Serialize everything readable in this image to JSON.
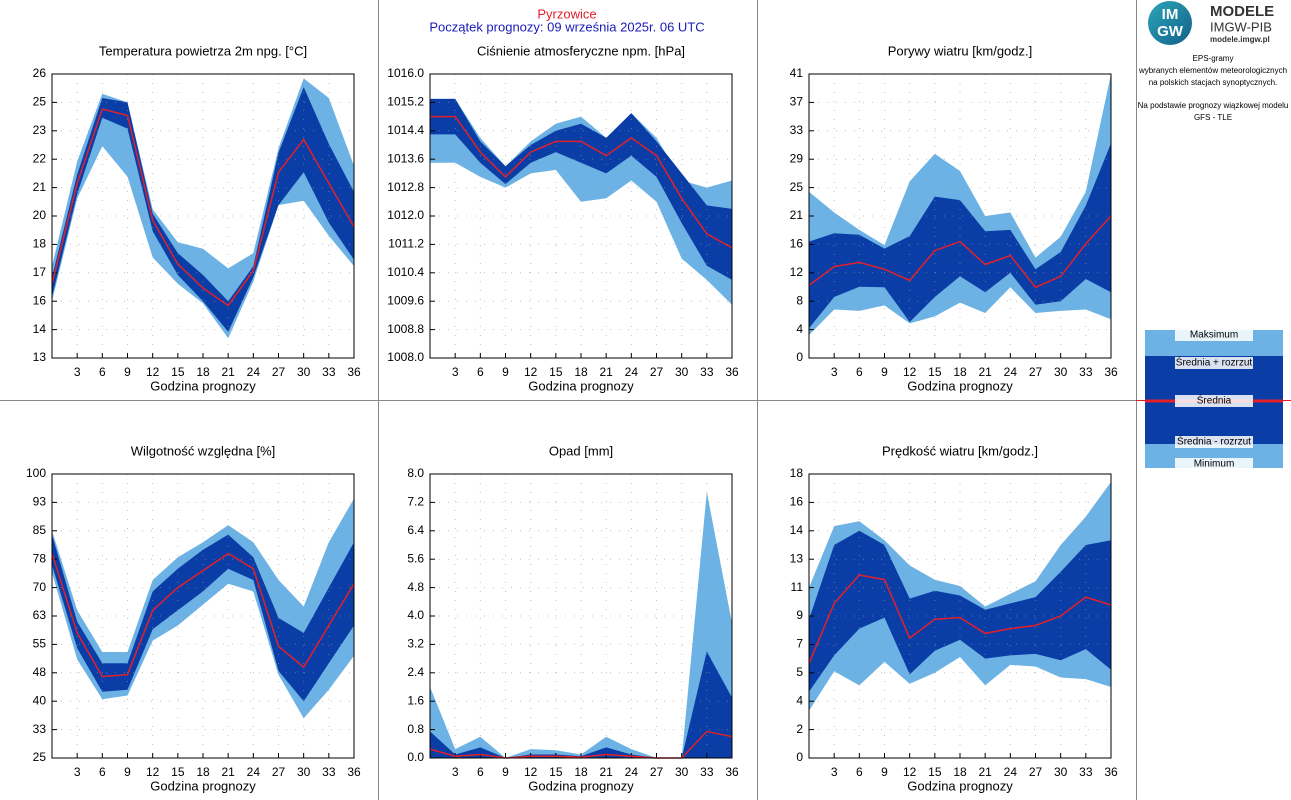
{
  "header": {
    "station": "Pyrzowice",
    "start": "Początek prognozy: 09 września 2025r. 06 UTC"
  },
  "logo": {
    "mark_top": "IM",
    "mark_bottom": "GW",
    "name": "MODELE",
    "org": "IMGW-PIB",
    "url": "modele.imgw.pl"
  },
  "description": [
    "EPS-gramy",
    "wybranych elementów meteorologicznych",
    "na polskich stacjach  synoptycznych.",
    "Na podstawie prognozy wiązkowej modelu",
    "GFS - TLE"
  ],
  "legend": [
    {
      "name": "Maksimum",
      "color": "#6cb2e4"
    },
    {
      "name": "Średnia + rozrzut",
      "color": "#0a3ea6"
    },
    {
      "name": "Średnia",
      "color": "#e3202a"
    },
    {
      "name": "Średnia - rozrzut",
      "color": "#0a3ea6"
    },
    {
      "name": "Minimum",
      "color": "#6cb2e4"
    }
  ],
  "chart_data": [
    {
      "type": "band",
      "title": "Temperatura powietrza 2m npg. [°C]",
      "xlabel": "Godzina prognozy",
      "x": [
        0,
        3,
        6,
        9,
        12,
        15,
        18,
        21,
        24,
        27,
        30,
        33,
        36
      ],
      "xlim": [
        0,
        36
      ],
      "xticks": [
        3,
        6,
        9,
        12,
        15,
        18,
        21,
        24,
        27,
        30,
        33,
        36
      ],
      "ylim": [
        13,
        26
      ],
      "yticks": [
        13,
        {
          "value": 14.3,
          "label": "14"
        },
        {
          "value": 15.6,
          "label": "16"
        },
        {
          "value": 16.9,
          "label": "17"
        },
        {
          "value": 18.2,
          "label": "18"
        },
        {
          "value": 19.5,
          "label": "20"
        },
        {
          "value": 20.8,
          "label": "21"
        },
        {
          "value": 22.1,
          "label": "22"
        },
        {
          "value": 23.4,
          "label": "23"
        },
        {
          "value": 24.7,
          "label": "25"
        },
        26
      ],
      "series": [
        {
          "values": [
            17.2,
            22,
            25.1,
            24.7,
            19.8,
            18.3,
            18,
            17.1,
            17.8,
            22.6,
            25.8,
            24.9,
            21.8
          ]
        },
        {
          "values": [
            16.7,
            21.4,
            24.9,
            24.7,
            19.6,
            17.8,
            16.8,
            15.6,
            17.2,
            22.4,
            25.4,
            22.8,
            20.6
          ]
        },
        {
          "values": [
            16.4,
            21,
            24.4,
            24.1,
            19.3,
            17.3,
            16.2,
            15.4,
            17,
            21.5,
            23,
            21,
            19
          ]
        },
        {
          "values": [
            15.8,
            20.5,
            24,
            23.5,
            18.8,
            16.8,
            15.6,
            14.2,
            16.7,
            20,
            21.5,
            19.2,
            17.5
          ]
        },
        {
          "values": [
            15.6,
            20.3,
            22.7,
            21.3,
            17.6,
            16.4,
            15.5,
            13.9,
            16.5,
            20,
            20.2,
            18.6,
            17.2
          ]
        }
      ]
    },
    {
      "type": "band",
      "title": "Ciśnienie atmosferyczne npm. [hPa]",
      "xlabel": "Godzina prognozy",
      "x": [
        0,
        3,
        6,
        9,
        12,
        15,
        18,
        21,
        24,
        27,
        30,
        33,
        36
      ],
      "xlim": [
        0,
        36
      ],
      "xticks": [
        3,
        6,
        9,
        12,
        15,
        18,
        21,
        24,
        27,
        30,
        33,
        36
      ],
      "ylim": [
        1008,
        1016
      ],
      "yticks": [
        {
          "value": 1008,
          "label": "1008.0"
        },
        1008.8,
        1009.6,
        1010.4,
        1011.2,
        {
          "value": 1012,
          "label": "1012.0"
        },
        1012.8,
        1013.6,
        1014.4,
        1015.2,
        {
          "value": 1016,
          "label": "1016.0"
        }
      ],
      "series": [
        {
          "values": [
            1015.3,
            1015.3,
            1014.2,
            1013.4,
            1014.1,
            1014.6,
            1014.8,
            1014.2,
            1014.9,
            1014.2,
            1013,
            1012.8,
            1013
          ]
        },
        {
          "values": [
            1015.3,
            1015.3,
            1014.1,
            1013.4,
            1014,
            1014.4,
            1014.6,
            1014.2,
            1014.9,
            1014.1,
            1013.2,
            1012.3,
            1012.2
          ]
        },
        {
          "values": [
            1014.8,
            1014.8,
            1013.8,
            1013.1,
            1013.8,
            1014.1,
            1014.1,
            1013.7,
            1014.2,
            1013.7,
            1012.5,
            1011.5,
            1011.1
          ]
        },
        {
          "values": [
            1014.3,
            1014.3,
            1013.5,
            1012.9,
            1013.5,
            1013.8,
            1013.5,
            1013.2,
            1013.7,
            1013.1,
            1011.8,
            1010.6,
            1010.2
          ]
        },
        {
          "values": [
            1013.5,
            1013.5,
            1013.1,
            1012.8,
            1013.2,
            1013.3,
            1012.4,
            1012.5,
            1013,
            1012.4,
            1010.8,
            1010.2,
            1009.5
          ]
        }
      ]
    },
    {
      "type": "band",
      "title": "Porywy wiatru [km/godz.]",
      "xlabel": "Godzina prognozy",
      "x": [
        0,
        3,
        6,
        9,
        12,
        15,
        18,
        21,
        24,
        27,
        30,
        33,
        36
      ],
      "xlim": [
        0,
        36
      ],
      "xticks": [
        3,
        6,
        9,
        12,
        15,
        18,
        21,
        24,
        27,
        30,
        33,
        36
      ],
      "ylim": [
        0,
        41
      ],
      "yticks": [
        0,
        {
          "value": 4.1,
          "label": "4"
        },
        {
          "value": 8.2,
          "label": "8"
        },
        {
          "value": 12.3,
          "label": "12"
        },
        {
          "value": 16.4,
          "label": "16"
        },
        {
          "value": 20.5,
          "label": "21"
        },
        {
          "value": 24.6,
          "label": "25"
        },
        {
          "value": 28.7,
          "label": "29"
        },
        {
          "value": 32.8,
          "label": "33"
        },
        {
          "value": 36.9,
          "label": "37"
        },
        41
      ],
      "series": [
        {
          "values": [
            24,
            21,
            18.5,
            16.3,
            25.5,
            29.5,
            27,
            20.5,
            21,
            14.5,
            17.5,
            24,
            41
          ]
        },
        {
          "values": [
            16.8,
            18,
            17.8,
            15.8,
            17.6,
            23.3,
            22.8,
            18.3,
            18.5,
            12.8,
            15.3,
            22,
            31
          ]
        },
        {
          "values": [
            10.5,
            13.2,
            13.8,
            12.8,
            11.2,
            15.5,
            16.8,
            13.5,
            14.8,
            10.2,
            11.8,
            16.5,
            20.5
          ]
        },
        {
          "values": [
            4.3,
            8.8,
            10.3,
            10.2,
            5.2,
            8.8,
            11.8,
            9.5,
            12.3,
            7.7,
            8.2,
            11.4,
            9.5
          ]
        },
        {
          "values": [
            3.3,
            7,
            6.8,
            7.6,
            5,
            6,
            8,
            6.5,
            10.2,
            6.5,
            6.8,
            7,
            5.6
          ]
        }
      ]
    },
    {
      "type": "band",
      "title": "Wilgotność względna [%]",
      "xlabel": "Godzina prognozy",
      "x": [
        0,
        3,
        6,
        9,
        12,
        15,
        18,
        21,
        24,
        27,
        30,
        33,
        36
      ],
      "xlim": [
        0,
        36
      ],
      "xticks": [
        3,
        6,
        9,
        12,
        15,
        18,
        21,
        24,
        27,
        30,
        33,
        36
      ],
      "ylim": [
        25,
        100
      ],
      "yticks": [
        25,
        {
          "value": 32.5,
          "label": "33"
        },
        40,
        {
          "value": 47.5,
          "label": "48"
        },
        55,
        {
          "value": 62.5,
          "label": "63"
        },
        70,
        {
          "value": 77.5,
          "label": "78"
        },
        85,
        {
          "value": 92.5,
          "label": "93"
        },
        100
      ],
      "series": [
        {
          "values": [
            85,
            64,
            53,
            53,
            72,
            78,
            82,
            86.5,
            82,
            72,
            65,
            82,
            93.5
          ]
        },
        {
          "values": [
            84,
            61,
            50,
            50,
            69,
            75,
            80,
            84,
            78,
            62,
            58,
            70,
            82
          ]
        },
        {
          "values": [
            79,
            58,
            46.5,
            47,
            64,
            70,
            74.5,
            79,
            75,
            54.5,
            49,
            60,
            71
          ]
        },
        {
          "values": [
            76,
            54,
            42.5,
            43,
            59,
            64,
            69,
            75,
            72,
            48,
            40,
            50,
            60
          ]
        },
        {
          "values": [
            74,
            51,
            40.5,
            41.5,
            56,
            60,
            65.5,
            71,
            69,
            47,
            35.5,
            43,
            52
          ]
        }
      ]
    },
    {
      "type": "band",
      "title": "Opad [mm]",
      "xlabel": "Godzina prognozy",
      "x": [
        0,
        3,
        6,
        9,
        12,
        15,
        18,
        21,
        24,
        27,
        30,
        33,
        36
      ],
      "xlim": [
        0,
        36
      ],
      "xticks": [
        3,
        6,
        9,
        12,
        15,
        18,
        21,
        24,
        27,
        30,
        33,
        36
      ],
      "ylim": [
        0,
        8
      ],
      "yticks": [
        {
          "value": 0,
          "label": "0.0"
        },
        0.8,
        1.6,
        2.4,
        3.2,
        {
          "value": 4,
          "label": "4.0"
        },
        4.8,
        5.6,
        6.4,
        7.2,
        {
          "value": 8,
          "label": "8.0"
        }
      ],
      "series": [
        {
          "values": [
            2,
            0.25,
            0.6,
            0,
            0.25,
            0.22,
            0.1,
            0.6,
            0.25,
            0,
            0,
            7.5,
            3.8
          ]
        },
        {
          "values": [
            0.75,
            0.1,
            0.3,
            0,
            0.1,
            0.1,
            0.05,
            0.3,
            0.1,
            0,
            0,
            3,
            1.7
          ]
        },
        {
          "values": [
            0.25,
            0.05,
            0.1,
            0,
            0.05,
            0.05,
            0.02,
            0.1,
            0.05,
            0,
            0,
            0.75,
            0.6
          ]
        },
        {
          "values": [
            0,
            0,
            0,
            0,
            0,
            0,
            0,
            0,
            0,
            0,
            0,
            0,
            0
          ]
        },
        {
          "values": [
            0,
            0,
            0,
            0,
            0,
            0,
            0,
            0,
            0,
            0,
            0,
            0,
            0
          ]
        }
      ]
    },
    {
      "type": "band",
      "title": "Prędkość wiatru [km/godz.]",
      "xlabel": "Godzina prognozy",
      "x": [
        0,
        3,
        6,
        9,
        12,
        15,
        18,
        21,
        24,
        27,
        30,
        33,
        36
      ],
      "xlim": [
        0,
        36
      ],
      "xticks": [
        3,
        6,
        9,
        12,
        15,
        18,
        21,
        24,
        27,
        30,
        33,
        36
      ],
      "ylim": [
        0,
        18
      ],
      "yticks": [
        0,
        {
          "value": 1.8,
          "label": "2"
        },
        {
          "value": 3.6,
          "label": "4"
        },
        {
          "value": 5.4,
          "label": "5"
        },
        {
          "value": 7.2,
          "label": "7"
        },
        9,
        {
          "value": 10.8,
          "label": "11"
        },
        {
          "value": 12.6,
          "label": "13"
        },
        {
          "value": 14.4,
          "label": "14"
        },
        {
          "value": 16.2,
          "label": "16"
        },
        18
      ],
      "series": [
        {
          "values": [
            10.8,
            14.7,
            15,
            13.8,
            12.2,
            11.3,
            10.9,
            9.6,
            10.4,
            11.2,
            13.5,
            15.3,
            17.5
          ]
        },
        {
          "values": [
            8.8,
            13.5,
            14.4,
            13.5,
            10.1,
            10.6,
            10.3,
            9.4,
            9.8,
            10.2,
            11.8,
            13.5,
            13.8
          ]
        },
        {
          "values": [
            6,
            9.8,
            11.6,
            11.3,
            7.6,
            8.8,
            8.9,
            7.9,
            8.2,
            8.4,
            9,
            10.2,
            9.7
          ]
        },
        {
          "values": [
            4.2,
            6.5,
            8.2,
            8.9,
            5.3,
            6.8,
            7.5,
            6.3,
            6.5,
            6.6,
            6.2,
            6.9,
            5.6
          ]
        },
        {
          "values": [
            3,
            5.5,
            4.6,
            6.1,
            4.7,
            5.4,
            6.4,
            4.6,
            5.9,
            5.8,
            5.1,
            5,
            4.5
          ]
        }
      ]
    }
  ]
}
